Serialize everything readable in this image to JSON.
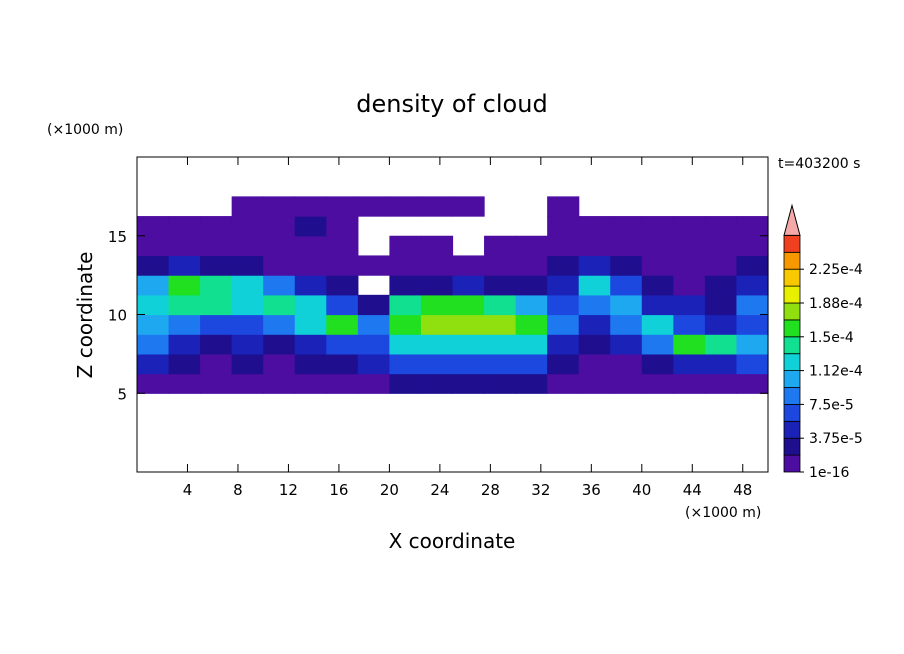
{
  "chart_data": {
    "type": "contour",
    "title": "density of cloud",
    "xlabel": "X coordinate",
    "ylabel": "Z coordinate",
    "xunit": "(×1000 m)",
    "yunit": "(×1000 m)",
    "annotation": "t=403200 s",
    "xlim": [
      0,
      50
    ],
    "ylim": [
      0,
      20
    ],
    "xticks": [
      4,
      8,
      12,
      16,
      20,
      24,
      28,
      32,
      36,
      40,
      44,
      48
    ],
    "yticks": [
      5,
      10,
      15
    ],
    "xbins": [
      0,
      2.5,
      5,
      7.5,
      10,
      12.5,
      15,
      17.5,
      20,
      22.5,
      25,
      27.5,
      30,
      32.5,
      35,
      37.5,
      40,
      42.5,
      45,
      47.5,
      50
    ],
    "zbins": [
      0,
      1.25,
      2.5,
      3.75,
      5,
      6.25,
      7.5,
      8.75,
      10,
      11.25,
      12.5,
      13.75,
      15,
      16.25,
      17.5,
      18.75,
      20
    ],
    "z": [
      [
        0,
        0,
        0,
        0,
        0,
        0,
        0,
        0,
        0,
        0,
        0,
        0,
        0,
        0,
        0,
        0,
        0,
        0,
        0,
        0
      ],
      [
        0,
        0,
        0,
        0,
        0,
        0,
        0,
        0,
        0,
        0,
        0,
        0,
        0,
        0,
        0,
        0,
        0,
        0,
        0,
        0
      ],
      [
        0,
        0,
        0,
        0,
        0,
        0,
        0,
        0,
        0,
        0,
        0,
        0,
        0,
        0,
        0,
        0,
        0,
        0,
        0,
        0
      ],
      [
        0,
        0,
        0,
        0,
        0,
        0,
        0,
        0,
        0,
        0,
        0,
        0,
        0,
        0,
        0,
        0,
        0,
        0,
        0,
        0
      ],
      [
        1e-16,
        1e-16,
        1e-16,
        1e-16,
        1e-16,
        1e-16,
        1e-16,
        1e-16,
        2e-05,
        2e-05,
        2e-05,
        2e-05,
        2e-05,
        1e-16,
        1e-16,
        1e-16,
        1e-16,
        1e-16,
        1e-16,
        1e-16
      ],
      [
        4e-05,
        2e-05,
        1e-16,
        2e-05,
        1e-16,
        2e-05,
        2e-05,
        4e-05,
        6e-05,
        6e-05,
        6e-05,
        6e-05,
        6e-05,
        2e-05,
        1e-16,
        1e-16,
        2e-05,
        4e-05,
        4e-05,
        6e-05
      ],
      [
        8e-05,
        4e-05,
        2e-05,
        4e-05,
        2e-05,
        4e-05,
        6e-05,
        6e-05,
        0.00012,
        0.00012,
        0.00012,
        0.00012,
        0.00012,
        4e-05,
        2e-05,
        4e-05,
        8e-05,
        0.00016,
        0.00014,
        0.0001
      ],
      [
        0.0001,
        8e-05,
        6e-05,
        6e-05,
        8e-05,
        0.00012,
        0.00016,
        8e-05,
        0.00016,
        0.00018,
        0.00018,
        0.00018,
        0.00016,
        8e-05,
        4e-05,
        8e-05,
        0.00012,
        6e-05,
        4e-05,
        6e-05
      ],
      [
        0.00012,
        0.00014,
        0.00014,
        0.00012,
        0.00014,
        0.00012,
        6e-05,
        2e-05,
        0.00014,
        0.00016,
        0.00016,
        0.00014,
        0.0001,
        6e-05,
        8e-05,
        0.0001,
        4e-05,
        4e-05,
        2e-05,
        8e-05
      ],
      [
        0.0001,
        0.00016,
        0.00014,
        0.00012,
        8e-05,
        4e-05,
        2e-05,
        0,
        2e-05,
        2e-05,
        4e-05,
        2e-05,
        2e-05,
        4e-05,
        0.00012,
        6e-05,
        2e-05,
        1e-16,
        2e-05,
        4e-05
      ],
      [
        2e-05,
        4e-05,
        2e-05,
        2e-05,
        1e-16,
        1e-16,
        1e-16,
        1e-16,
        1e-16,
        1e-16,
        1e-16,
        1e-16,
        1e-16,
        2e-05,
        4e-05,
        2e-05,
        1e-16,
        1e-16,
        1e-16,
        2e-05
      ],
      [
        1e-16,
        1e-16,
        1e-16,
        1e-16,
        1e-16,
        1e-16,
        1e-16,
        0,
        1e-16,
        1e-16,
        0,
        1e-16,
        1e-16,
        1e-16,
        1e-16,
        1e-16,
        1e-16,
        1e-16,
        1e-16,
        1e-16
      ],
      [
        1e-16,
        1e-16,
        1e-16,
        1e-16,
        1e-16,
        2e-05,
        1e-16,
        0,
        0,
        0,
        0,
        0,
        0,
        1e-16,
        1e-16,
        1e-16,
        1e-16,
        1e-16,
        1e-16,
        1e-16
      ],
      [
        0,
        0,
        0,
        1e-16,
        1e-16,
        1e-16,
        1e-16,
        1e-16,
        1e-16,
        1e-16,
        1e-16,
        0,
        0,
        1e-16,
        0,
        0,
        0,
        0,
        0,
        0
      ],
      [
        0,
        0,
        0,
        0,
        0,
        0,
        0,
        0,
        0,
        0,
        0,
        0,
        0,
        0,
        0,
        0,
        0,
        0,
        0,
        0
      ],
      [
        0,
        0,
        0,
        0,
        0,
        0,
        0,
        0,
        0,
        0,
        0,
        0,
        0,
        0,
        0,
        0,
        0,
        0,
        0,
        0
      ]
    ],
    "levels": [
      1e-16,
      1.875e-05,
      3.75e-05,
      5.625e-05,
      7.5e-05,
      9.375e-05,
      0.0001125,
      0.00013125,
      0.00015,
      0.00016875,
      0.0001875,
      0.00020625,
      0.000225,
      0.00024375,
      0.0002625
    ],
    "colors": [
      "#4c0da0",
      "#1f0f8f",
      "#1a22b8",
      "#1c48e0",
      "#1e78f0",
      "#1ea8f0",
      "#10d0d8",
      "#10e090",
      "#20e020",
      "#90e010",
      "#e8f000",
      "#f8c800",
      "#f89800",
      "#f04020"
    ],
    "extend_color": "#f4a8a8",
    "colorbar_ticks": [
      {
        "value": 1e-16,
        "label": "1e-16"
      },
      {
        "value": 3.75e-05,
        "label": "3.75e-5"
      },
      {
        "value": 7.5e-05,
        "label": "7.5e-5"
      },
      {
        "value": 0.0001125,
        "label": "1.12e-4"
      },
      {
        "value": 0.00015,
        "label": "1.5e-4"
      },
      {
        "value": 0.0001875,
        "label": "1.88e-4"
      },
      {
        "value": 0.000225,
        "label": "2.25e-4"
      }
    ]
  }
}
